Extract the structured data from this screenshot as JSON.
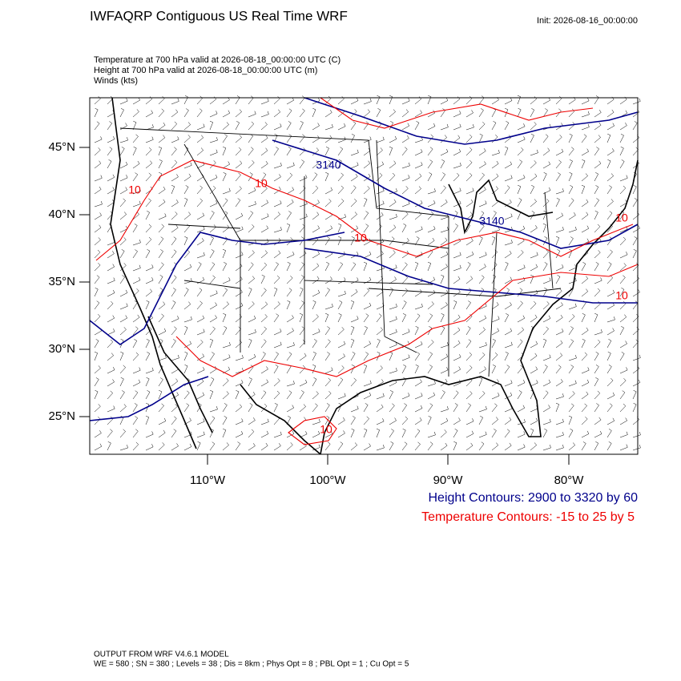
{
  "header": {
    "title": "IWFAQRP Contiguous US Real Time WRF",
    "init": "Init: 2026-08-16_00:00:00"
  },
  "fields": [
    "Temperature at 700 hPa valid at 2026-08-18_00:00:00 UTC   (C)",
    "Height at 700 hPa valid at 2026-08-18_00:00:00 UTC   (m)",
    "Winds   (kts)"
  ],
  "map": {
    "lat_labels": [
      "45°N",
      "40°N",
      "35°N",
      "30°N",
      "25°N"
    ],
    "lon_labels": [
      "110°W",
      "100°W",
      "90°W",
      "80°W"
    ],
    "height_labels": [
      "3140",
      "3140"
    ],
    "temperature_labels": [
      "10",
      "10",
      "10",
      "10",
      "10",
      "10"
    ]
  },
  "legend": [
    "Height Contours: 2900 to 3320 by 60",
    "Temperature Contours: -15 to 25 by 5"
  ],
  "footer": [
    "OUTPUT FROM WRF V4.6.1 MODEL",
    "WE = 580 ; SN = 380 ; Levels = 38 ; Dis = 8km ; Phys Opt = 8 ; PBL Opt = 1 ; Cu Opt = 5"
  ]
}
